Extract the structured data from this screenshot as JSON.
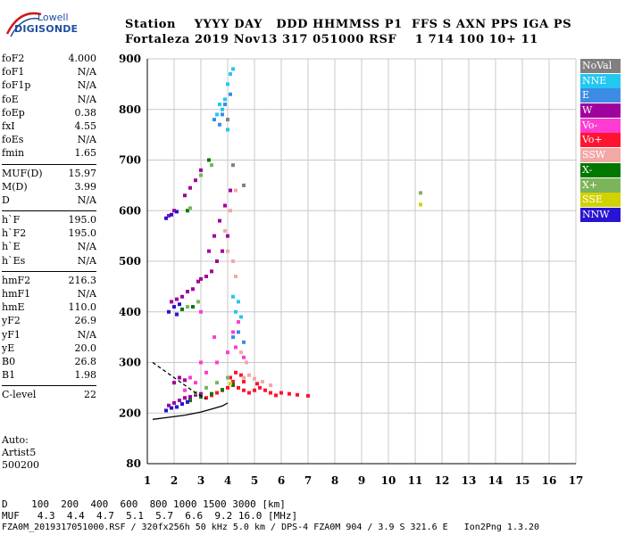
{
  "logo": {
    "line1": "Lowell",
    "line2": "DIGISONDE"
  },
  "header": {
    "line1": "Station    YYYY DAY   DDD HHMMSS P1  FFS S AXN PPS IGA PS",
    "line2": "Fortaleza 2019 Nov13 317 051000 RSF    1 714 100 10+ 11"
  },
  "params": {
    "group1": [
      {
        "k": "foF2",
        "v": "4.000"
      },
      {
        "k": "foF1",
        "v": "N/A"
      },
      {
        "k": "foF1p",
        "v": "N/A"
      },
      {
        "k": "foE",
        "v": "N/A"
      },
      {
        "k": "foEp",
        "v": "0.38"
      },
      {
        "k": "fxI",
        "v": "4.55"
      },
      {
        "k": "foEs",
        "v": "N/A"
      },
      {
        "k": "fmin",
        "v": "1.65"
      }
    ],
    "group2": [
      {
        "k": "MUF(D)",
        "v": "15.97"
      },
      {
        "k": "M(D)",
        "v": "3.99"
      },
      {
        "k": "D",
        "v": "N/A"
      }
    ],
    "group3": [
      {
        "k": "h`F",
        "v": "195.0"
      },
      {
        "k": "h`F2",
        "v": "195.0"
      },
      {
        "k": "h`E",
        "v": "N/A"
      },
      {
        "k": "h`Es",
        "v": "N/A"
      }
    ],
    "group4": [
      {
        "k": "hmF2",
        "v": "216.3"
      },
      {
        "k": "hmF1",
        "v": "N/A"
      },
      {
        "k": "hmE",
        "v": "110.0"
      },
      {
        "k": "yF2",
        "v": "26.9"
      },
      {
        "k": "yF1",
        "v": "N/A"
      },
      {
        "k": "yE",
        "v": "20.0"
      },
      {
        "k": "B0",
        "v": "26.8"
      },
      {
        "k": "B1",
        "v": "1.98"
      }
    ],
    "group5": [
      {
        "k": "C-level",
        "v": "22"
      }
    ]
  },
  "auto": {
    "line1": "Auto:",
    "line2": "Artist5",
    "line3": "500200"
  },
  "legend": [
    {
      "label": "NoVal",
      "color": "#808080"
    },
    {
      "label": "NNE",
      "color": "#22c8f0"
    },
    {
      "label": "E",
      "color": "#3c8ce6"
    },
    {
      "label": "W",
      "color": "#a0009c"
    },
    {
      "label": "Vo-",
      "color": "#ff3cd2"
    },
    {
      "label": "Vo+",
      "color": "#ff1430"
    },
    {
      "label": "SSW",
      "color": "#f2a8a4"
    },
    {
      "label": "X-",
      "color": "#007800"
    },
    {
      "label": "X+",
      "color": "#7cb45a"
    },
    {
      "label": "SSE",
      "color": "#d2d200"
    },
    {
      "label": "NNW",
      "color": "#2814d2"
    }
  ],
  "bottom": {
    "d_line": "D    100  200  400  600  800 1000 1500 3000 [km]",
    "muf_line": "MUF   4.3  4.4  4.7  5.1  5.7  6.6  9.2 16.0 [MHz]",
    "file_line": "FZA0M_2019317051000.RSF / 320fx256h 50 kHz 5.0 km / DPS-4 FZA0M 904 / 3.9 S 321.6 E   Ion2Png 1.3.20"
  },
  "chart_data": {
    "type": "scatter",
    "title": "",
    "xlabel": "",
    "ylabel": "",
    "xlim": [
      1,
      17
    ],
    "ylim": [
      80,
      900
    ],
    "x_ticks": [
      1,
      2,
      3,
      4,
      5,
      6,
      7,
      8,
      9,
      10,
      11,
      12,
      13,
      14,
      15,
      16,
      17
    ],
    "y_ticks": [
      80,
      200,
      300,
      400,
      500,
      600,
      700,
      800,
      900
    ],
    "y_tick_labels": [
      "80",
      "200",
      "300",
      "400",
      "500",
      "600",
      "700",
      "800",
      "900"
    ],
    "grid": true,
    "legend_position": "right",
    "series": [
      {
        "name": "Vo+",
        "color": "#ff1430",
        "points": [
          [
            3.6,
            240
          ],
          [
            3.8,
            245
          ],
          [
            4.0,
            250
          ],
          [
            4.2,
            255
          ],
          [
            4.4,
            250
          ],
          [
            4.6,
            245
          ],
          [
            4.8,
            240
          ],
          [
            5.0,
            245
          ],
          [
            5.2,
            250
          ],
          [
            5.4,
            245
          ],
          [
            5.6,
            240
          ],
          [
            5.8,
            235
          ],
          [
            6.0,
            240
          ],
          [
            6.3,
            238
          ],
          [
            6.6,
            236
          ],
          [
            7.0,
            234
          ],
          [
            3.4,
            235
          ],
          [
            3.2,
            230
          ],
          [
            4.1,
            270
          ],
          [
            4.3,
            280
          ],
          [
            4.5,
            275
          ],
          [
            4.2,
            262
          ],
          [
            4.6,
            262
          ],
          [
            5.1,
            258
          ],
          [
            2.5,
            222
          ]
        ]
      },
      {
        "name": "W",
        "color": "#a0009c",
        "points": [
          [
            1.8,
            215
          ],
          [
            2.0,
            220
          ],
          [
            2.2,
            225
          ],
          [
            2.4,
            230
          ],
          [
            2.6,
            232
          ],
          [
            2.8,
            236
          ],
          [
            3.0,
            238
          ],
          [
            2.0,
            260
          ],
          [
            2.2,
            270
          ],
          [
            2.4,
            265
          ],
          [
            1.9,
            420
          ],
          [
            2.1,
            425
          ],
          [
            2.3,
            430
          ],
          [
            2.5,
            440
          ],
          [
            2.7,
            445
          ],
          [
            2.9,
            460
          ],
          [
            1.8,
            590
          ],
          [
            2.0,
            600
          ],
          [
            2.4,
            630
          ],
          [
            2.6,
            645
          ],
          [
            3.0,
            465
          ],
          [
            3.2,
            470
          ],
          [
            3.4,
            480
          ],
          [
            3.6,
            500
          ],
          [
            3.8,
            520
          ],
          [
            4.0,
            550
          ],
          [
            3.3,
            520
          ],
          [
            3.5,
            550
          ],
          [
            3.7,
            580
          ],
          [
            3.9,
            610
          ],
          [
            4.1,
            640
          ],
          [
            2.8,
            660
          ],
          [
            3.0,
            680
          ]
        ]
      },
      {
        "name": "Vo-",
        "color": "#ff3cd2",
        "points": [
          [
            2.4,
            245
          ],
          [
            2.8,
            260
          ],
          [
            3.2,
            280
          ],
          [
            3.6,
            300
          ],
          [
            4.0,
            320
          ],
          [
            4.2,
            360
          ],
          [
            4.4,
            380
          ],
          [
            3.0,
            400
          ],
          [
            3.5,
            350
          ],
          [
            3.0,
            300
          ],
          [
            2.6,
            270
          ],
          [
            4.3,
            330
          ],
          [
            4.6,
            310
          ]
        ]
      },
      {
        "name": "NNE",
        "color": "#22c8f0",
        "points": [
          [
            3.8,
            800
          ],
          [
            3.9,
            820
          ],
          [
            4.0,
            850
          ],
          [
            4.1,
            870
          ],
          [
            4.2,
            880
          ],
          [
            4.0,
            760
          ],
          [
            3.6,
            790
          ],
          [
            3.7,
            810
          ],
          [
            4.3,
            400
          ],
          [
            4.4,
            420
          ],
          [
            4.5,
            390
          ],
          [
            4.2,
            430
          ]
        ]
      },
      {
        "name": "E",
        "color": "#3c8ce6",
        "points": [
          [
            3.5,
            780
          ],
          [
            3.7,
            770
          ],
          [
            3.8,
            790
          ],
          [
            3.9,
            810
          ],
          [
            4.1,
            830
          ],
          [
            4.2,
            350
          ],
          [
            4.4,
            360
          ],
          [
            4.6,
            340
          ]
        ]
      },
      {
        "name": "SSW",
        "color": "#f2a8a4",
        "points": [
          [
            4.6,
            270
          ],
          [
            4.8,
            275
          ],
          [
            5.0,
            268
          ],
          [
            5.3,
            262
          ],
          [
            5.6,
            255
          ],
          [
            4.2,
            500
          ],
          [
            4.0,
            520
          ],
          [
            4.3,
            470
          ],
          [
            4.5,
            320
          ],
          [
            4.7,
            300
          ],
          [
            3.9,
            560
          ],
          [
            4.1,
            600
          ],
          [
            4.3,
            640
          ]
        ]
      },
      {
        "name": "X-",
        "color": "#007800",
        "points": [
          [
            2.6,
            225
          ],
          [
            3.0,
            232
          ],
          [
            3.4,
            238
          ],
          [
            3.8,
            246
          ],
          [
            4.2,
            256
          ],
          [
            2.3,
            405
          ],
          [
            2.7,
            410
          ],
          [
            2.5,
            600
          ],
          [
            3.3,
            700
          ]
        ]
      },
      {
        "name": "X+",
        "color": "#7cb45a",
        "points": [
          [
            2.8,
            240
          ],
          [
            3.2,
            250
          ],
          [
            3.6,
            260
          ],
          [
            4.0,
            270
          ],
          [
            2.5,
            410
          ],
          [
            2.9,
            420
          ],
          [
            2.6,
            605
          ],
          [
            3.0,
            670
          ],
          [
            11.2,
            635
          ],
          [
            3.4,
            690
          ]
        ]
      },
      {
        "name": "SSE",
        "color": "#d2d200",
        "points": [
          [
            11.2,
            612
          ],
          [
            4.1,
            258
          ]
        ]
      },
      {
        "name": "NNW",
        "color": "#2814d2",
        "points": [
          [
            1.7,
            205
          ],
          [
            1.9,
            210
          ],
          [
            2.1,
            212
          ],
          [
            2.3,
            218
          ],
          [
            2.5,
            222
          ],
          [
            1.8,
            400
          ],
          [
            2.0,
            410
          ],
          [
            2.2,
            415
          ],
          [
            1.7,
            585
          ],
          [
            1.9,
            592
          ],
          [
            2.1,
            598
          ],
          [
            2.1,
            395
          ]
        ]
      },
      {
        "name": "NoVal",
        "color": "#808080",
        "points": [
          [
            4.0,
            780
          ],
          [
            4.2,
            690
          ],
          [
            4.6,
            650
          ]
        ]
      }
    ],
    "trace_curves": [
      {
        "name": "profile-upper",
        "color": "#000000",
        "dashed": true,
        "points": [
          [
            1.2,
            300
          ],
          [
            1.6,
            285
          ],
          [
            2.0,
            270
          ],
          [
            2.4,
            255
          ],
          [
            2.8,
            240
          ],
          [
            3.2,
            228
          ]
        ]
      },
      {
        "name": "profile-lower",
        "color": "#000000",
        "dashed": false,
        "points": [
          [
            1.2,
            185
          ],
          [
            1.8,
            190
          ],
          [
            2.4,
            195
          ],
          [
            3.0,
            202
          ],
          [
            3.4,
            208
          ],
          [
            3.8,
            214
          ],
          [
            4.0,
            220
          ]
        ]
      }
    ]
  }
}
